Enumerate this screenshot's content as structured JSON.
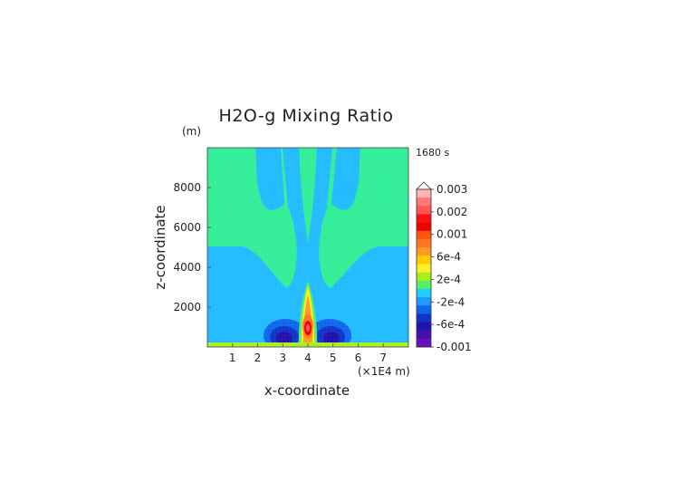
{
  "chart_data": {
    "type": "heatmap",
    "title": "H2O-g Mixing Ratio",
    "xlabel": "x-coordinate",
    "ylabel": "z-coordinate",
    "x_unit_label": "(×1E4 m)",
    "y_unit_label": "(m)",
    "time_label": "1680 s",
    "x_ticks": [
      "1",
      "2",
      "3",
      "4",
      "5",
      "6",
      "7"
    ],
    "y_ticks": [
      "2000",
      "4000",
      "6000",
      "8000"
    ],
    "xlim": [
      0,
      8
    ],
    "ylim": [
      0,
      10000
    ],
    "colorbar": {
      "tick_labels": [
        "0.003",
        "0.002",
        "0.001",
        "6e-4",
        "2e-4",
        "-2e-4",
        "-6e-4",
        "-0.001"
      ],
      "colors_top_to_bottom": [
        "#ffb3b3",
        "#ff7777",
        "#ff5555",
        "#ff1111",
        "#ee0000",
        "#ff5511",
        "#ff7722",
        "#ff9922",
        "#ffcc00",
        "#ffee22",
        "#aaee22",
        "#55ee66",
        "#22ccff",
        "#2299ff",
        "#1166ee",
        "#1133cc",
        "#2211aa",
        "#4411aa",
        "#6611bb"
      ],
      "extend": "top"
    },
    "field_features": [
      {
        "feature": "background",
        "value_range": [
          0,
          0.0002
        ],
        "color": "#33ee99"
      },
      {
        "feature": "plume core",
        "x": 4.0,
        "z_top": 3000,
        "value_max": 0.002
      },
      {
        "feature": "negative lobes",
        "x": [
          3.3,
          4.8
        ],
        "z": 600,
        "value_min": -0.001
      }
    ]
  }
}
